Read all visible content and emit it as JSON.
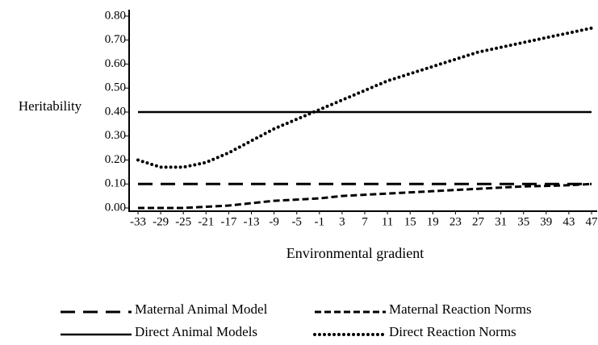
{
  "chart_data": {
    "type": "line",
    "ylabel": "Heritability",
    "xlabel": "Environmental gradient",
    "x": [
      -33,
      -29,
      -25,
      -21,
      -17,
      -13,
      -9,
      -5,
      -1,
      3,
      7,
      11,
      15,
      19,
      23,
      27,
      31,
      35,
      39,
      43,
      47
    ],
    "xlim": [
      -33,
      47
    ],
    "xticks": [
      -33,
      -29,
      -25,
      -21,
      -17,
      -13,
      -9,
      -5,
      -1,
      3,
      7,
      11,
      15,
      19,
      23,
      27,
      31,
      35,
      39,
      43,
      47
    ],
    "ylim": [
      0,
      0.8
    ],
    "yticks": [
      {
        "value": 0,
        "label": "0.00"
      },
      {
        "value": 0.1,
        "label": "0.10"
      },
      {
        "value": 0.2,
        "label": "0.20"
      },
      {
        "value": 0.3,
        "label": "0.30"
      },
      {
        "value": 0.4,
        "label": "0.40"
      },
      {
        "value": 0.5,
        "label": "0.50"
      },
      {
        "value": 0.6,
        "label": "0.60"
      },
      {
        "value": 0.7,
        "label": "0.70"
      },
      {
        "value": 0.8,
        "label": "0.80"
      }
    ],
    "series": [
      {
        "name": "Maternal Animal Model",
        "color": "#000000",
        "dash": "long-dash",
        "values": [
          0.1,
          0.1,
          0.1,
          0.1,
          0.1,
          0.1,
          0.1,
          0.1,
          0.1,
          0.1,
          0.1,
          0.1,
          0.1,
          0.1,
          0.1,
          0.1,
          0.1,
          0.1,
          0.1,
          0.1,
          0.1
        ]
      },
      {
        "name": "Maternal Reaction Norms",
        "color": "#000000",
        "dash": "short-dash",
        "values": [
          0,
          0,
          0,
          0.005,
          0.01,
          0.02,
          0.03,
          0.035,
          0.04,
          0.05,
          0.055,
          0.06,
          0.065,
          0.07,
          0.075,
          0.08,
          0.085,
          0.09,
          0.092,
          0.095,
          0.1
        ]
      },
      {
        "name": "Direct Animal Models",
        "color": "#000000",
        "dash": "solid",
        "values": [
          0.4,
          0.4,
          0.4,
          0.4,
          0.4,
          0.4,
          0.4,
          0.4,
          0.4,
          0.4,
          0.4,
          0.4,
          0.4,
          0.4,
          0.4,
          0.4,
          0.4,
          0.4,
          0.4,
          0.4,
          0.4
        ]
      },
      {
        "name": "Direct Reaction Norms",
        "color": "#000000",
        "dash": "dotted",
        "values": [
          0.2,
          0.17,
          0.17,
          0.19,
          0.23,
          0.28,
          0.33,
          0.37,
          0.41,
          0.45,
          0.49,
          0.53,
          0.56,
          0.59,
          0.62,
          0.65,
          0.67,
          0.69,
          0.71,
          0.73,
          0.75
        ]
      }
    ]
  }
}
